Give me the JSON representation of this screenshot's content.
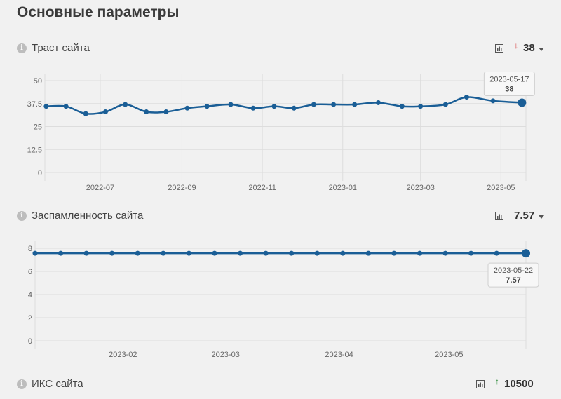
{
  "page": {
    "title": "Основные параметры"
  },
  "metrics": [
    {
      "label": "Траст сайта",
      "value": "38",
      "trend": "down",
      "trend_color": "#d32f2f"
    },
    {
      "label": "Заспамленность сайта",
      "value": "7.57"
    },
    {
      "label": "ИКС сайта",
      "value": "10500",
      "trend": "up",
      "trend_color": "#2e8b3a"
    }
  ],
  "colors": {
    "line": "#1a5e96",
    "grid": "#dddddd",
    "background": "#f1f1f1"
  },
  "chart_data": [
    {
      "type": "line",
      "ylim": [
        0,
        50
      ],
      "yticks": [
        0,
        12.5,
        25,
        37.5,
        50
      ],
      "ytick_labels": [
        "0",
        "12.5",
        "25",
        "37.5",
        "50"
      ],
      "xlim": [
        "2022-05-20",
        "2023-05-20"
      ],
      "xticks": [
        "2022-07-01",
        "2022-09-01",
        "2022-11-01",
        "2023-01-01",
        "2023-03-01",
        "2023-05-01"
      ],
      "xtick_labels": [
        "2022-07",
        "2022-09",
        "2022-11",
        "2023-01",
        "2023-03",
        "2023-05"
      ],
      "x": [
        "2022-05-21",
        "2022-06-05",
        "2022-06-20",
        "2022-07-05",
        "2022-07-20",
        "2022-08-05",
        "2022-08-20",
        "2022-09-05",
        "2022-09-20",
        "2022-10-08",
        "2022-10-25",
        "2022-11-10",
        "2022-11-25",
        "2022-12-10",
        "2022-12-25",
        "2023-01-10",
        "2023-01-28",
        "2023-02-15",
        "2023-03-01",
        "2023-03-20",
        "2023-04-05",
        "2023-04-25",
        "2023-05-17"
      ],
      "values": [
        36,
        36,
        32,
        33,
        37,
        33,
        33,
        35,
        36,
        37,
        35,
        36,
        35,
        37,
        37,
        37,
        38,
        36,
        36,
        37,
        41,
        39,
        38
      ],
      "grid": true,
      "tooltip": {
        "date": "2023-05-17",
        "value": "38"
      }
    },
    {
      "type": "line",
      "ylim": [
        0,
        8
      ],
      "yticks": [
        0,
        2,
        4,
        6,
        8
      ],
      "ytick_labels": [
        "0",
        "2",
        "4",
        "6",
        "8"
      ],
      "xlim": [
        "2023-01-08",
        "2023-05-22"
      ],
      "xticks": [
        "2023-02-01",
        "2023-03-01",
        "2023-04-01",
        "2023-05-01"
      ],
      "xtick_labels": [
        "2023-02",
        "2023-03",
        "2023-04",
        "2023-05"
      ],
      "x": [
        "2023-01-08",
        "2023-01-15",
        "2023-01-22",
        "2023-01-29",
        "2023-02-05",
        "2023-02-12",
        "2023-02-19",
        "2023-02-26",
        "2023-03-05",
        "2023-03-12",
        "2023-03-19",
        "2023-03-26",
        "2023-04-02",
        "2023-04-09",
        "2023-04-16",
        "2023-04-23",
        "2023-04-30",
        "2023-05-07",
        "2023-05-14",
        "2023-05-22"
      ],
      "values": [
        7.57,
        7.57,
        7.57,
        7.57,
        7.57,
        7.57,
        7.57,
        7.57,
        7.57,
        7.57,
        7.57,
        7.57,
        7.57,
        7.57,
        7.57,
        7.57,
        7.57,
        7.57,
        7.57,
        7.57
      ],
      "grid": true,
      "tooltip": {
        "date": "2023-05-22",
        "value": "7.57"
      }
    }
  ]
}
